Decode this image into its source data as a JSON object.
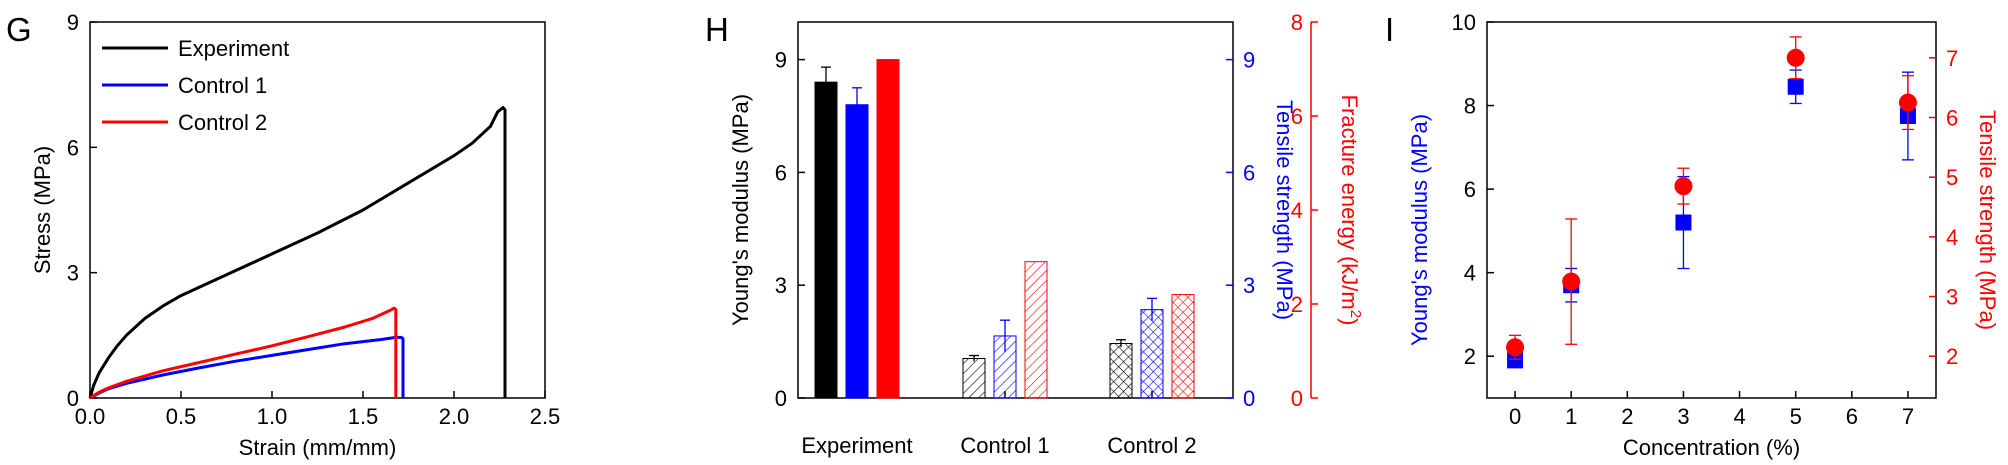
{
  "panels": {
    "G": {
      "letter": "G"
    },
    "H": {
      "letter": "H"
    },
    "I": {
      "letter": "I"
    }
  },
  "chart_data": [
    {
      "panel": "G",
      "type": "line",
      "xlabel": "Strain (mm/mm)",
      "ylabel": "Stress (MPa)",
      "xlim": [
        0,
        2.5
      ],
      "ylim": [
        0,
        9
      ],
      "xticks": [
        0.0,
        0.5,
        1.0,
        1.5,
        2.0,
        2.5
      ],
      "xtick_labels": [
        "0.0",
        "0.5",
        "1.0",
        "1.5",
        "2.0",
        "2.5"
      ],
      "yticks": [
        0,
        3,
        6,
        9
      ],
      "ytick_labels": [
        "0",
        "3",
        "6",
        "9"
      ],
      "legend_position": "top-left",
      "grid": false,
      "series": [
        {
          "name": "Experiment",
          "color": "#000000",
          "points": [
            [
              0,
              0
            ],
            [
              0.02,
              0.3
            ],
            [
              0.05,
              0.6
            ],
            [
              0.1,
              0.95
            ],
            [
              0.15,
              1.25
            ],
            [
              0.2,
              1.5
            ],
            [
              0.3,
              1.9
            ],
            [
              0.4,
              2.2
            ],
            [
              0.5,
              2.45
            ],
            [
              0.6,
              2.65
            ],
            [
              0.75,
              2.95
            ],
            [
              1.0,
              3.45
            ],
            [
              1.25,
              3.95
            ],
            [
              1.5,
              4.5
            ],
            [
              1.75,
              5.15
            ],
            [
              2.0,
              5.8
            ],
            [
              2.1,
              6.1
            ],
            [
              2.2,
              6.5
            ],
            [
              2.24,
              6.85
            ],
            [
              2.27,
              6.95
            ],
            [
              2.28,
              6.9
            ],
            [
              2.28,
              0
            ]
          ]
        },
        {
          "name": "Control 1",
          "color": "#0000ff",
          "points": [
            [
              0,
              0
            ],
            [
              0.05,
              0.12
            ],
            [
              0.1,
              0.22
            ],
            [
              0.2,
              0.35
            ],
            [
              0.4,
              0.55
            ],
            [
              0.6,
              0.72
            ],
            [
              0.8,
              0.88
            ],
            [
              1.0,
              1.02
            ],
            [
              1.2,
              1.16
            ],
            [
              1.4,
              1.3
            ],
            [
              1.6,
              1.4
            ],
            [
              1.68,
              1.45
            ],
            [
              1.71,
              1.45
            ],
            [
              1.72,
              1.42
            ],
            [
              1.72,
              0
            ]
          ]
        },
        {
          "name": "Control 2",
          "color": "#ff0000",
          "points": [
            [
              0,
              0
            ],
            [
              0.05,
              0.14
            ],
            [
              0.1,
              0.24
            ],
            [
              0.2,
              0.4
            ],
            [
              0.4,
              0.65
            ],
            [
              0.6,
              0.85
            ],
            [
              0.8,
              1.05
            ],
            [
              1.0,
              1.25
            ],
            [
              1.2,
              1.47
            ],
            [
              1.4,
              1.7
            ],
            [
              1.55,
              1.9
            ],
            [
              1.65,
              2.1
            ],
            [
              1.67,
              2.15
            ],
            [
              1.68,
              2.12
            ],
            [
              1.68,
              0
            ]
          ]
        }
      ]
    },
    {
      "panel": "H",
      "type": "bar",
      "categories": [
        "Experiment",
        "Control 1",
        "Control 2"
      ],
      "axes": [
        {
          "label": "Young's modulus (MPa)",
          "color": "#000000",
          "lim": [
            0,
            10
          ],
          "ticks": [
            0,
            3,
            6,
            9
          ],
          "tick_labels": [
            "0",
            "3",
            "6",
            "9"
          ]
        },
        {
          "label": "Tensile strength (MPa)",
          "color": "#0000ff",
          "lim": [
            0,
            10
          ],
          "ticks": [
            0,
            3,
            6,
            9
          ],
          "tick_labels": [
            "0",
            "3",
            "6",
            "9"
          ]
        },
        {
          "label_main": "Fracture energy (kJ/m",
          "label_sup": "2",
          "label_end": ")",
          "color": "#ff0000",
          "lim": [
            0,
            8
          ],
          "ticks": [
            0,
            2,
            4,
            6,
            8
          ],
          "tick_labels": [
            "0",
            "2",
            "4",
            "6",
            "8"
          ]
        }
      ],
      "series": [
        {
          "axis": 0,
          "color": "#000000",
          "values": [
            8.4,
            1.05,
            1.45
          ],
          "errors": [
            0.4,
            0.08,
            0.1
          ]
        },
        {
          "axis": 1,
          "color": "#0000ff",
          "values": [
            7.8,
            1.65,
            2.35
          ],
          "errors": [
            0.45,
            0.42,
            0.3
          ]
        },
        {
          "axis": 2,
          "color": "#ff0000",
          "values": [
            7.2,
            2.9,
            2.2
          ],
          "errors": [
            0,
            0,
            0
          ]
        }
      ],
      "fill_styles": [
        "solid",
        "diagonal-hatch",
        "cross-hatch"
      ]
    },
    {
      "panel": "I",
      "type": "scatter",
      "xlabel": "Concentration (%)",
      "xlim": [
        -0.5,
        7.5
      ],
      "xticks": [
        0,
        1,
        2,
        3,
        4,
        5,
        6,
        7
      ],
      "xtick_labels": [
        "0",
        "1",
        "2",
        "3",
        "4",
        "5",
        "6",
        "7"
      ],
      "axes": [
        {
          "label": "Young's modulus (MPa)",
          "color": "#0000ff",
          "lim": [
            1,
            10
          ],
          "ticks": [
            2,
            4,
            6,
            8,
            10
          ],
          "tick_labels": [
            "2",
            "4",
            "6",
            "8",
            "10"
          ]
        },
        {
          "label": "Tensile strength (MPa)",
          "color": "#ff0000",
          "lim": [
            1.3,
            7.6
          ],
          "ticks": [
            2,
            3,
            4,
            5,
            6,
            7
          ],
          "tick_labels": [
            "2",
            "3",
            "4",
            "5",
            "6",
            "7"
          ]
        }
      ],
      "series": [
        {
          "axis": 0,
          "marker": "square",
          "color": "#0000ff",
          "x": [
            0,
            1,
            3,
            5,
            7
          ],
          "y": [
            1.9,
            3.7,
            5.2,
            8.45,
            7.75
          ],
          "errors": [
            0.15,
            0.4,
            1.1,
            0.4,
            1.05
          ]
        },
        {
          "axis": 1,
          "marker": "circle",
          "color": "#ff0000",
          "x": [
            0,
            1,
            3,
            5,
            7
          ],
          "y": [
            2.15,
            3.25,
            4.85,
            7.0,
            6.25
          ],
          "errors": [
            0.2,
            1.05,
            0.3,
            0.35,
            0.45
          ]
        }
      ]
    }
  ]
}
